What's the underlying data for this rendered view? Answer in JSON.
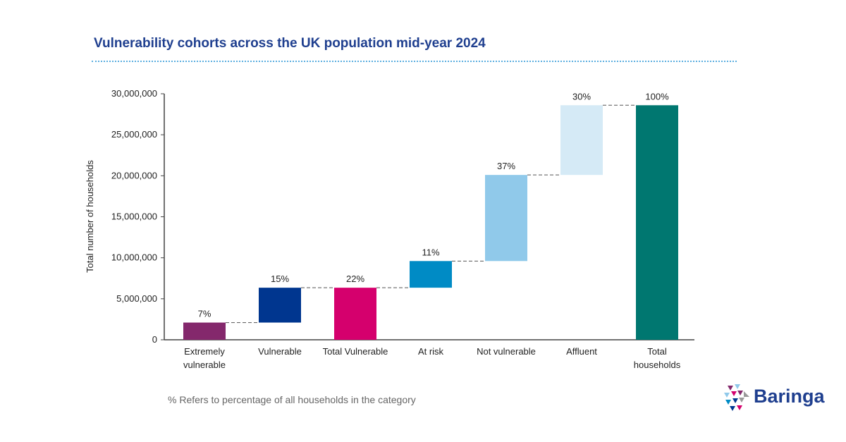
{
  "title": "Vulnerability cohorts across the UK population mid-year 2024",
  "note": "% Refers to percentage of all households in the category",
  "logo": "Baringa",
  "chart_data": {
    "type": "waterfall",
    "ylabel": "Total number of households",
    "ylim": [
      0,
      30000000
    ],
    "yticks": [
      "0",
      "5,000,000",
      "10,000,000",
      "15,000,000",
      "20,000,000",
      "25,000,000",
      "30,000,000"
    ],
    "grid": false,
    "categories": [
      [
        "Extremely",
        "vulnerable"
      ],
      [
        "Vulnerable"
      ],
      [
        "Total Vulnerable"
      ],
      [
        "At risk"
      ],
      [
        "Not vulnerable"
      ],
      [
        "Affluent"
      ],
      [
        "Total",
        "households"
      ]
    ],
    "bars": [
      {
        "base": 0,
        "top": 2100000,
        "label": "7%",
        "color": "#84286c"
      },
      {
        "base": 2100000,
        "top": 6350000,
        "label": "15%",
        "color": "#00368f"
      },
      {
        "base": 0,
        "top": 6350000,
        "label": "22%",
        "color": "#d5006d"
      },
      {
        "base": 6350000,
        "top": 9600000,
        "label": "11%",
        "color": "#008bc5"
      },
      {
        "base": 9600000,
        "top": 20100000,
        "label": "37%",
        "color": "#90c9ea"
      },
      {
        "base": 20100000,
        "top": 28600000,
        "label": "30%",
        "color": "#d5eaf6"
      },
      {
        "base": 0,
        "top": 28600000,
        "label": "100%",
        "color": "#007770"
      }
    ]
  }
}
